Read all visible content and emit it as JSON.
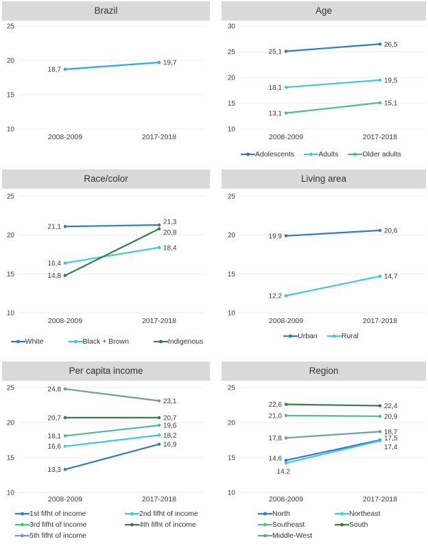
{
  "colors": {
    "panel_header_bg": "#d9d9d9",
    "gridline": "#ededed",
    "text": "#3b3b3b",
    "sky_blue": "#29abe2",
    "blue": "#2f78c3",
    "cyan": "#40c8da",
    "green": "#4fba8c",
    "dark_green": "#3b7d44",
    "slate_teal": "#6d9ea4"
  },
  "chart_data": [
    {
      "id": "brazil",
      "type": "line",
      "title": "Brazil",
      "categories": [
        "2008-2009",
        "2017-2018"
      ],
      "yticks": [
        10,
        15,
        20,
        25
      ],
      "ylim": [
        10,
        25
      ],
      "grid": true,
      "legend_layout": "none",
      "series": [
        {
          "name": "Brazil",
          "color": "#29abe2",
          "values": [
            18.7,
            19.7
          ],
          "labels": [
            "18,7",
            "19,7"
          ]
        }
      ]
    },
    {
      "id": "age",
      "type": "line",
      "title": "Age",
      "categories": [
        "2008-2009",
        "2017-2018"
      ],
      "yticks": [
        10,
        15,
        20,
        25,
        30
      ],
      "ylim": [
        10,
        30
      ],
      "grid": true,
      "legend_layout": "center",
      "series": [
        {
          "name": "Adolescents",
          "color": "#2f78c3",
          "values": [
            25.1,
            26.5
          ],
          "labels": [
            "25,1",
            "26,5"
          ]
        },
        {
          "name": "Adults",
          "color": "#40c8da",
          "values": [
            18.1,
            19.5
          ],
          "labels": [
            "18,1",
            "19,5"
          ]
        },
        {
          "name": "Older adults",
          "color": "#4fba8c",
          "values": [
            13.1,
            15.1
          ],
          "labels": [
            "13,1",
            "15,1"
          ]
        }
      ]
    },
    {
      "id": "race-color",
      "type": "line",
      "title": "Race/color",
      "categories": [
        "2008-2009",
        "2017-2018"
      ],
      "yticks": [
        10,
        15,
        20,
        25
      ],
      "ylim": [
        10,
        25
      ],
      "grid": true,
      "legend_layout": "spread",
      "series": [
        {
          "name": "White",
          "color": "#2f78c3",
          "values": [
            21.1,
            21.3
          ],
          "labels": [
            "21,1",
            "21,3"
          ],
          "label_dy": [
            0,
            -5
          ]
        },
        {
          "name": "Black + Brown",
          "color": "#40c8da",
          "values": [
            16.4,
            18.4
          ],
          "labels": [
            "16,4",
            "18,4"
          ]
        },
        {
          "name": "Indigenous",
          "color": "#3b7d44",
          "values": [
            14.8,
            20.8
          ],
          "labels": [
            "14,8",
            "20,8"
          ],
          "label_dy": [
            0,
            5
          ]
        }
      ]
    },
    {
      "id": "living-area",
      "type": "line",
      "title": "Living area",
      "categories": [
        "2008-2009",
        "2017-2018"
      ],
      "yticks": [
        10,
        15,
        20,
        25
      ],
      "ylim": [
        10,
        25
      ],
      "grid": true,
      "legend_layout": "center",
      "series": [
        {
          "name": "Urban",
          "color": "#2f78c3",
          "values": [
            19.9,
            20.6
          ],
          "labels": [
            "19,9",
            "20,6"
          ]
        },
        {
          "name": "Rural",
          "color": "#40c8da",
          "values": [
            12.2,
            14.7
          ],
          "labels": [
            "12,2",
            "14,7"
          ]
        }
      ]
    },
    {
      "id": "per-capita-income",
      "type": "line",
      "title": "Per capita income",
      "categories": [
        "2008-2009",
        "2017-2018"
      ],
      "yticks": [
        10,
        15,
        20,
        25
      ],
      "ylim": [
        10,
        25
      ],
      "grid": true,
      "legend_layout": "cols-left",
      "series": [
        {
          "name": "1st fifht of income",
          "color": "#2f78c3",
          "values": [
            13.3,
            16.9
          ],
          "labels": [
            "13,3",
            "16,9"
          ]
        },
        {
          "name": "2nd fifht of income",
          "color": "#40c8da",
          "values": [
            16.6,
            18.2
          ],
          "labels": [
            "16,6",
            "18,2"
          ]
        },
        {
          "name": "3rd fifht of income",
          "color": "#4fba8c",
          "values": [
            18.1,
            19.6
          ],
          "labels": [
            "18,1",
            "19,6"
          ]
        },
        {
          "name": "4th fifht of income",
          "color": "#3b7d44",
          "values": [
            20.7,
            20.7
          ],
          "labels": [
            "20,7",
            "20,7"
          ]
        },
        {
          "name": "5th fifht of income",
          "color": "#6d9ea4",
          "values": [
            24.8,
            23.1
          ],
          "labels": [
            "24,8",
            "23,1"
          ]
        }
      ]
    },
    {
      "id": "region",
      "type": "line",
      "title": "Region",
      "categories": [
        "2008-2009",
        "2017-2018"
      ],
      "yticks": [
        10,
        15,
        20,
        25
      ],
      "ylim": [
        10,
        25
      ],
      "grid": true,
      "legend_layout": "cols-center",
      "series": [
        {
          "name": "North",
          "color": "#2f78c3",
          "values": [
            14.6,
            17.5
          ],
          "labels": [
            "14,6",
            "17,5"
          ],
          "label_dy": [
            -3,
            -3
          ]
        },
        {
          "name": "Northeast",
          "color": "#40c8da",
          "values": [
            14.2,
            17.4
          ],
          "labels": [
            "14,2",
            "17,4"
          ],
          "label_dx": [
            12,
            0
          ],
          "label_dy": [
            12,
            9
          ]
        },
        {
          "name": "Southeast",
          "color": "#4fba8c",
          "values": [
            21.0,
            20.9
          ],
          "labels": [
            "21,0",
            "20,9"
          ]
        },
        {
          "name": "South",
          "color": "#3b7d44",
          "values": [
            22.6,
            22.4
          ],
          "labels": [
            "22,6",
            "22,4"
          ]
        },
        {
          "name": "Middle-West",
          "color": "#6d9ea4",
          "values": [
            17.8,
            18.7
          ],
          "labels": [
            "17,8",
            "18,7"
          ]
        }
      ]
    }
  ]
}
